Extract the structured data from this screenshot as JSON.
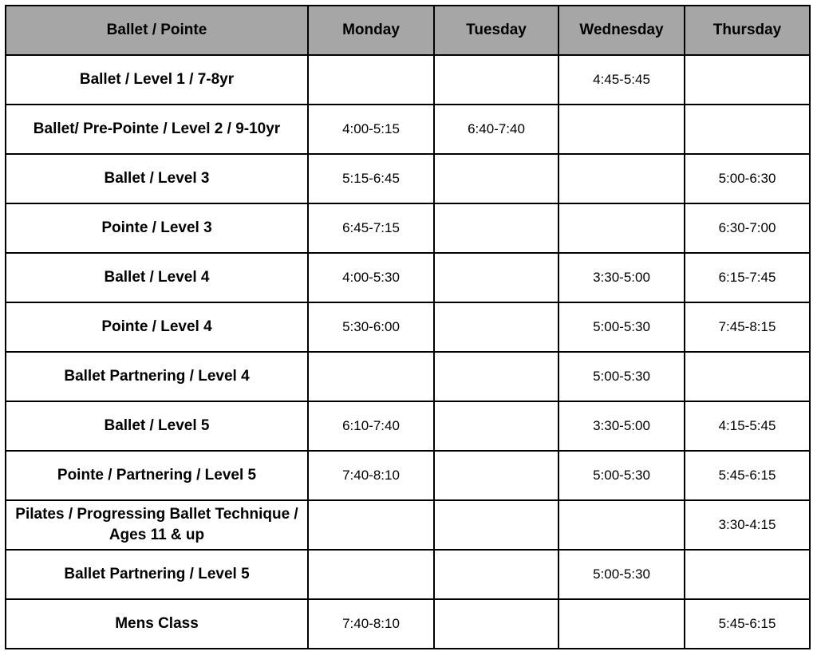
{
  "table": {
    "headers": [
      "Ballet / Pointe",
      "Monday",
      "Tuesday",
      "Wednesday",
      "Thursday"
    ],
    "rows": [
      [
        "Ballet / Level 1 / 7-8yr",
        "",
        "",
        "4:45-5:45",
        ""
      ],
      [
        "Ballet/ Pre-Pointe / Level 2 / 9-10yr",
        "4:00-5:15",
        "6:40-7:40",
        "",
        ""
      ],
      [
        "Ballet / Level 3",
        "5:15-6:45",
        "",
        "",
        "5:00-6:30"
      ],
      [
        "Pointe / Level 3",
        "6:45-7:15",
        "",
        "",
        "6:30-7:00"
      ],
      [
        "Ballet / Level 4",
        "4:00-5:30",
        "",
        "3:30-5:00",
        "6:15-7:45"
      ],
      [
        "Pointe / Level 4",
        "5:30-6:00",
        "",
        "5:00-5:30",
        "7:45-8:15"
      ],
      [
        "Ballet Partnering / Level 4",
        "",
        "",
        "5:00-5:30",
        ""
      ],
      [
        "Ballet / Level 5",
        "6:10-7:40",
        "",
        "3:30-5:00",
        "4:15-5:45"
      ],
      [
        "Pointe / Partnering / Level 5",
        "7:40-8:10",
        "",
        "5:00-5:30",
        "5:45-6:15"
      ],
      [
        "Pilates / Progressing Ballet Technique / Ages 11 & up",
        "",
        "",
        "",
        "3:30-4:15"
      ],
      [
        "Ballet Partnering / Level 5",
        "",
        "",
        "5:00-5:30",
        ""
      ],
      [
        "Mens Class",
        "7:40-8:10",
        "",
        "",
        "5:45-6:15"
      ]
    ],
    "header_color": "#a6a6a6"
  }
}
